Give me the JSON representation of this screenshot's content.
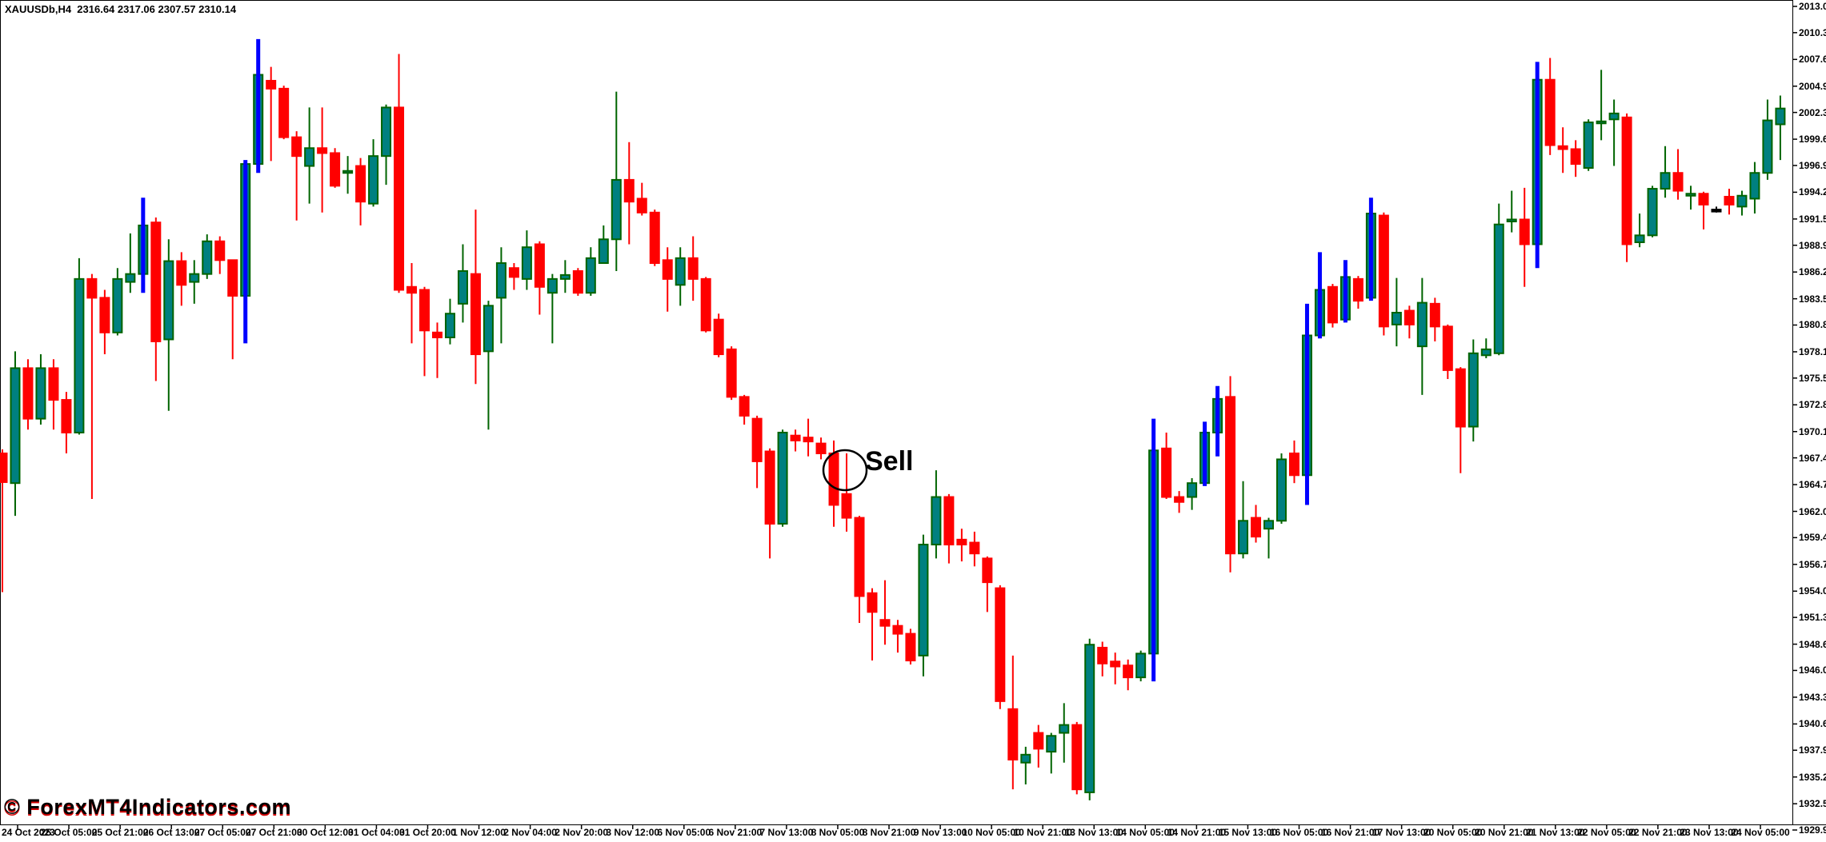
{
  "header": {
    "title": "XAUUSDb,H4  2316.64 2317.06 2307.57 2310.14"
  },
  "watermark": "© ForexMT4Indicators.com",
  "annotation": {
    "label": "Sell"
  },
  "colors": {
    "background": "#ffffff",
    "bull_body": "#008080",
    "bull_border": "#006400",
    "bear": "#ff0000",
    "blue_wick": "#0000ff",
    "flat_dash": "#000000",
    "axis_text": "#000000",
    "annotation": "#000000"
  },
  "chart_data": {
    "type": "candlestick",
    "title": "XAUUSDb,H4",
    "grid": false,
    "legend_position": "none",
    "y_axis": {
      "top_price": 2013.0,
      "bottom_price": 1929.9,
      "labels": [
        "2013.00",
        "2010.35",
        "2007.65",
        "2004.95",
        "2002.30",
        "1999.60",
        "1996.95",
        "1994.25",
        "1991.55",
        "1988.90",
        "1986.20",
        "1983.50",
        "1980.85",
        "1978.15",
        "1975.50",
        "1972.80",
        "1970.10",
        "1967.45",
        "1964.75",
        "1962.05",
        "1959.40",
        "1956.70",
        "1954.00",
        "1951.35",
        "1948.65",
        "1946.00",
        "1943.30",
        "1940.60",
        "1937.95",
        "1935.25",
        "1932.55",
        "1929.90"
      ]
    },
    "x_axis": {
      "labels": [
        "24 Oct 2023",
        "25 Oct 05:00",
        "25 Oct 21:00",
        "26 Oct 13:00",
        "27 Oct 05:00",
        "27 Oct 21:00",
        "30 Oct 12:00",
        "31 Oct 04:00",
        "31 Oct 20:00",
        "1 Nov 12:00",
        "2 Nov 04:00",
        "2 Nov 20:00",
        "3 Nov 12:00",
        "6 Nov 05:00",
        "6 Nov 21:00",
        "7 Nov 13:00",
        "8 Nov 05:00",
        "8 Nov 21:00",
        "9 Nov 13:00",
        "10 Nov 05:00",
        "10 Nov 21:00",
        "13 Nov 13:00",
        "14 Nov 05:00",
        "14 Nov 21:00",
        "15 Nov 13:00",
        "16 Nov 05:00",
        "16 Nov 21:00",
        "17 Nov 13:00",
        "20 Nov 05:00",
        "20 Nov 21:00",
        "21 Nov 13:00",
        "22 Nov 05:00",
        "22 Nov 21:00",
        "23 Nov 13:00",
        "24 Nov 05:00"
      ]
    },
    "flag_meaning": {
      "u": "bullish: teal body, dark-green border and wick",
      "d": "bearish: red body, red wick",
      "ub": "bullish: teal body, thick blue wick drawn through body",
      "f": "flat doji rendered as short black dash"
    },
    "candles": [
      [
        1967.9,
        1968.3,
        1953.9,
        1965.0,
        "d"
      ],
      [
        1964.9,
        1978.2,
        1961.6,
        1976.5,
        "u"
      ],
      [
        1976.5,
        1977.4,
        1970.3,
        1971.4,
        "d"
      ],
      [
        1971.4,
        1977.9,
        1970.8,
        1976.5,
        "u"
      ],
      [
        1976.5,
        1977.4,
        1970.3,
        1973.3,
        "d"
      ],
      [
        1973.3,
        1974.1,
        1967.9,
        1970.0,
        "d"
      ],
      [
        1970.0,
        1987.6,
        1969.8,
        1985.5,
        "u"
      ],
      [
        1985.5,
        1986.0,
        1963.3,
        1983.6,
        "d"
      ],
      [
        1983.6,
        1984.4,
        1977.9,
        1980.1,
        "d"
      ],
      [
        1980.1,
        1986.6,
        1979.8,
        1985.5,
        "u"
      ],
      [
        1985.2,
        1990.1,
        1984.1,
        1986.0,
        "u"
      ],
      [
        1986.0,
        1993.7,
        1984.1,
        1990.9,
        "ub"
      ],
      [
        1991.2,
        1991.7,
        1975.2,
        1979.2,
        "d"
      ],
      [
        1979.4,
        1989.5,
        1972.2,
        1987.3,
        "u"
      ],
      [
        1987.3,
        1988.2,
        1982.8,
        1984.9,
        "d"
      ],
      [
        1985.2,
        1987.4,
        1983.0,
        1986.0,
        "u"
      ],
      [
        1986.0,
        1990.0,
        1985.5,
        1989.3,
        "u"
      ],
      [
        1989.3,
        1989.8,
        1986.0,
        1987.4,
        "d"
      ],
      [
        1987.4,
        1987.4,
        1977.4,
        1983.8,
        "d"
      ],
      [
        1983.8,
        1997.5,
        1979.0,
        1997.1,
        "ub"
      ],
      [
        1997.1,
        2009.7,
        1996.2,
        2006.1,
        "ub"
      ],
      [
        2005.5,
        2006.9,
        1997.4,
        2004.7,
        "d"
      ],
      [
        2004.7,
        2005.0,
        1999.6,
        1999.8,
        "d"
      ],
      [
        1999.8,
        2000.4,
        1991.4,
        1997.9,
        "d"
      ],
      [
        1996.9,
        2002.8,
        1993.1,
        1998.7,
        "u"
      ],
      [
        1998.7,
        2002.8,
        1992.2,
        1998.2,
        "d"
      ],
      [
        1998.2,
        1998.7,
        1994.7,
        1994.9,
        "d"
      ],
      [
        1996.3,
        1997.9,
        1994.1,
        1996.4,
        "u"
      ],
      [
        1996.9,
        1997.7,
        1990.9,
        1993.3,
        "d"
      ],
      [
        1993.1,
        1999.6,
        1992.8,
        1997.9,
        "u"
      ],
      [
        1997.9,
        2003.1,
        1995.0,
        2002.8,
        "u"
      ],
      [
        2002.8,
        2008.2,
        1984.1,
        1984.4,
        "d"
      ],
      [
        1984.7,
        1987.1,
        1979.0,
        1984.1,
        "d"
      ],
      [
        1984.4,
        1984.7,
        1975.7,
        1980.3,
        "d"
      ],
      [
        1980.1,
        1981.1,
        1975.5,
        1979.6,
        "d"
      ],
      [
        1979.6,
        1983.5,
        1978.9,
        1982.0,
        "u"
      ],
      [
        1983.0,
        1989.0,
        1981.1,
        1986.3,
        "u"
      ],
      [
        1986.0,
        1992.5,
        1974.9,
        1977.9,
        "d"
      ],
      [
        1978.2,
        1983.3,
        1970.3,
        1982.8,
        "u"
      ],
      [
        1983.6,
        1988.7,
        1979.0,
        1987.1,
        "u"
      ],
      [
        1986.6,
        1987.1,
        1984.4,
        1985.7,
        "d"
      ],
      [
        1985.5,
        1990.4,
        1984.4,
        1988.7,
        "u"
      ],
      [
        1989.0,
        1989.3,
        1981.9,
        1984.7,
        "d"
      ],
      [
        1984.1,
        1986.0,
        1979.0,
        1985.5,
        "u"
      ],
      [
        1985.5,
        1987.4,
        1984.1,
        1985.9,
        "u"
      ],
      [
        1986.3,
        1986.6,
        1983.8,
        1984.1,
        "d"
      ],
      [
        1984.1,
        1988.7,
        1983.8,
        1987.6,
        "u"
      ],
      [
        1987.1,
        1990.9,
        1987.1,
        1989.5,
        "u"
      ],
      [
        1989.5,
        2004.4,
        1986.3,
        1995.5,
        "u"
      ],
      [
        1995.5,
        1999.3,
        1989.0,
        1993.3,
        "d"
      ],
      [
        1993.6,
        1995.2,
        1991.9,
        1992.2,
        "d"
      ],
      [
        1992.2,
        1992.5,
        1986.8,
        1987.1,
        "d"
      ],
      [
        1987.4,
        1988.7,
        1982.2,
        1985.5,
        "d"
      ],
      [
        1984.9,
        1988.7,
        1982.8,
        1987.6,
        "u"
      ],
      [
        1987.6,
        1989.8,
        1983.3,
        1985.5,
        "d"
      ],
      [
        1985.5,
        1985.7,
        1980.1,
        1980.3,
        "d"
      ],
      [
        1981.4,
        1982.0,
        1977.6,
        1977.9,
        "d"
      ],
      [
        1978.4,
        1978.7,
        1973.3,
        1973.6,
        "d"
      ],
      [
        1973.6,
        1973.8,
        1970.8,
        1971.7,
        "d"
      ],
      [
        1971.4,
        1971.7,
        1964.4,
        1967.1,
        "d"
      ],
      [
        1968.1,
        1968.4,
        1957.3,
        1960.8,
        "d"
      ],
      [
        1960.8,
        1970.3,
        1960.5,
        1970.0,
        "u"
      ],
      [
        1969.7,
        1970.3,
        1968.1,
        1969.2,
        "d"
      ],
      [
        1969.5,
        1971.4,
        1967.6,
        1969.1,
        "d"
      ],
      [
        1968.9,
        1969.5,
        1967.3,
        1967.9,
        "d"
      ],
      [
        1967.9,
        1969.2,
        1960.5,
        1962.7,
        "d"
      ],
      [
        1963.8,
        1967.9,
        1960.0,
        1961.4,
        "d"
      ],
      [
        1961.4,
        1961.6,
        1950.8,
        1953.5,
        "d"
      ],
      [
        1953.8,
        1954.3,
        1947.0,
        1951.9,
        "d"
      ],
      [
        1951.1,
        1955.1,
        1948.6,
        1950.5,
        "d"
      ],
      [
        1950.5,
        1951.1,
        1947.8,
        1949.7,
        "d"
      ],
      [
        1949.7,
        1950.2,
        1946.6,
        1947.0,
        "d"
      ],
      [
        1947.5,
        1959.7,
        1945.4,
        1958.7,
        "u"
      ],
      [
        1958.7,
        1966.2,
        1957.3,
        1963.5,
        "u"
      ],
      [
        1963.5,
        1963.8,
        1956.8,
        1958.7,
        "d"
      ],
      [
        1959.2,
        1960.3,
        1957.0,
        1958.7,
        "d"
      ],
      [
        1958.9,
        1960.0,
        1956.5,
        1957.8,
        "d"
      ],
      [
        1957.3,
        1957.5,
        1951.9,
        1954.9,
        "d"
      ],
      [
        1954.3,
        1954.6,
        1942.1,
        1942.9,
        "d"
      ],
      [
        1942.1,
        1947.5,
        1934.0,
        1937.0,
        "d"
      ],
      [
        1936.7,
        1938.3,
        1934.5,
        1937.5,
        "u"
      ],
      [
        1939.7,
        1940.5,
        1936.2,
        1938.1,
        "d"
      ],
      [
        1937.8,
        1939.7,
        1935.6,
        1939.4,
        "u"
      ],
      [
        1939.7,
        1942.7,
        1936.7,
        1940.5,
        "u"
      ],
      [
        1940.5,
        1940.8,
        1933.5,
        1934.0,
        "d"
      ],
      [
        1933.7,
        1949.2,
        1932.9,
        1948.6,
        "u"
      ],
      [
        1948.3,
        1948.9,
        1945.4,
        1946.7,
        "d"
      ],
      [
        1946.9,
        1947.8,
        1944.6,
        1946.4,
        "d"
      ],
      [
        1946.5,
        1947.1,
        1944.0,
        1945.3,
        "d"
      ],
      [
        1945.3,
        1948.0,
        1944.9,
        1947.7,
        "u"
      ],
      [
        1947.7,
        1971.4,
        1944.9,
        1968.2,
        "ub"
      ],
      [
        1968.4,
        1970.0,
        1963.3,
        1963.5,
        "d"
      ],
      [
        1963.5,
        1964.1,
        1961.9,
        1963.0,
        "d"
      ],
      [
        1963.5,
        1965.4,
        1962.2,
        1964.9,
        "u"
      ],
      [
        1964.9,
        1971.1,
        1964.6,
        1970.0,
        "ub"
      ],
      [
        1970.0,
        1974.7,
        1967.6,
        1973.4,
        "ub"
      ],
      [
        1973.6,
        1975.7,
        1955.9,
        1957.8,
        "d"
      ],
      [
        1957.8,
        1965.1,
        1957.3,
        1961.1,
        "u"
      ],
      [
        1961.4,
        1962.7,
        1958.9,
        1959.5,
        "d"
      ],
      [
        1960.3,
        1961.4,
        1957.3,
        1961.1,
        "u"
      ],
      [
        1961.1,
        1967.9,
        1960.8,
        1967.3,
        "u"
      ],
      [
        1967.9,
        1969.2,
        1964.9,
        1965.7,
        "d"
      ],
      [
        1965.7,
        1983.0,
        1962.7,
        1979.8,
        "ub"
      ],
      [
        1979.8,
        1988.2,
        1979.5,
        1984.4,
        "ub"
      ],
      [
        1984.7,
        1985.0,
        1980.6,
        1981.1,
        "d"
      ],
      [
        1981.4,
        1987.4,
        1981.1,
        1985.7,
        "ub"
      ],
      [
        1985.5,
        1985.8,
        1982.5,
        1983.3,
        "d"
      ],
      [
        1983.6,
        1993.7,
        1983.3,
        1992.1,
        "ub"
      ],
      [
        1991.9,
        1992.2,
        1979.8,
        1980.7,
        "d"
      ],
      [
        1980.9,
        1985.6,
        1978.7,
        1982.1,
        "u"
      ],
      [
        1982.3,
        1982.8,
        1979.5,
        1980.9,
        "d"
      ],
      [
        1978.7,
        1985.6,
        1973.8,
        1983.1,
        "u"
      ],
      [
        1983.0,
        1983.6,
        1979.2,
        1980.7,
        "d"
      ],
      [
        1980.7,
        1980.9,
        1975.4,
        1976.3,
        "d"
      ],
      [
        1976.4,
        1976.6,
        1965.9,
        1970.6,
        "d"
      ],
      [
        1970.6,
        1979.4,
        1969.1,
        1978.0,
        "u"
      ],
      [
        1977.8,
        1979.5,
        1977.5,
        1978.4,
        "u"
      ],
      [
        1978.0,
        1993.1,
        1977.8,
        1991.0,
        "u"
      ],
      [
        1991.3,
        1994.4,
        1990.2,
        1991.5,
        "u"
      ],
      [
        1991.5,
        1994.7,
        1984.7,
        1989.0,
        "d"
      ],
      [
        1989.0,
        2007.4,
        1986.6,
        2005.6,
        "ub"
      ],
      [
        2005.6,
        2007.8,
        1998.0,
        1999.0,
        "d"
      ],
      [
        1998.9,
        2000.8,
        1996.2,
        1998.6,
        "d"
      ],
      [
        1998.6,
        1999.5,
        1995.8,
        1997.1,
        "d"
      ],
      [
        1996.7,
        2001.6,
        1996.4,
        2001.3,
        "u"
      ],
      [
        2001.3,
        2006.6,
        1999.5,
        2001.4,
        "u"
      ],
      [
        2001.6,
        2003.6,
        1996.9,
        2002.2,
        "u"
      ],
      [
        2001.8,
        2002.2,
        1987.2,
        1989.0,
        "d"
      ],
      [
        1989.2,
        1992.1,
        1988.7,
        1989.9,
        "u"
      ],
      [
        1989.9,
        1994.9,
        1989.7,
        1994.6,
        "u"
      ],
      [
        1994.6,
        1998.9,
        1993.7,
        1996.2,
        "u"
      ],
      [
        1996.2,
        1998.6,
        1993.5,
        1994.4,
        "d"
      ],
      [
        1994.0,
        1994.9,
        1992.5,
        1994.1,
        "u"
      ],
      [
        1994.1,
        1994.3,
        1990.5,
        1993.0,
        "d"
      ],
      [
        1992.5,
        1992.8,
        1992.2,
        1992.5,
        "f"
      ],
      [
        1993.8,
        1994.6,
        1992.0,
        1993.0,
        "d"
      ],
      [
        1992.8,
        1994.4,
        1991.9,
        1993.9,
        "u"
      ],
      [
        1993.6,
        1997.3,
        1992.1,
        1996.2,
        "u"
      ],
      [
        1996.2,
        2003.6,
        1995.5,
        2001.5,
        "u"
      ],
      [
        2001.1,
        2004.0,
        1997.5,
        2002.7,
        "u"
      ]
    ]
  }
}
